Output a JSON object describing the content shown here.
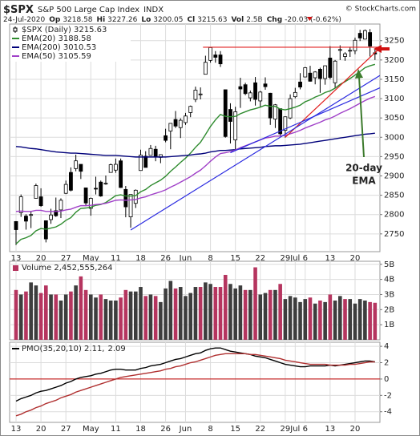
{
  "header": {
    "symbol": "$SPX",
    "name": "S&P 500 Large Cap Index",
    "exchange": "INDX",
    "copyright": "© StockCharts.com",
    "date": "24-Jul-2020",
    "quote": [
      {
        "label": "Op",
        "value": "3218.58"
      },
      {
        "label": "Hi",
        "value": "3227.26"
      },
      {
        "label": "Lo",
        "value": "3200.05"
      },
      {
        "label": "Cl",
        "value": "3215.63"
      },
      {
        "label": "Vol",
        "value": "2.5B"
      },
      {
        "label": "Chg",
        "value": "-20.03 (-0.62%)"
      }
    ]
  },
  "chart_data": [
    {
      "type": "candlestick",
      "categories": [
        "13",
        null,
        null,
        null,
        null,
        "20",
        null,
        null,
        null,
        null,
        "27",
        null,
        null,
        null,
        null,
        "May",
        null,
        null,
        null,
        null,
        "11",
        null,
        null,
        null,
        null,
        "18",
        null,
        null,
        null,
        null,
        "26",
        null,
        null,
        null,
        "Jun",
        null,
        null,
        null,
        null,
        "8",
        null,
        null,
        null,
        null,
        "15",
        null,
        null,
        null,
        null,
        "22",
        null,
        null,
        null,
        null,
        "29",
        null,
        "Jul",
        null,
        "6",
        null,
        null,
        null,
        null,
        "13",
        null,
        null,
        null,
        null,
        "20",
        null,
        null,
        null,
        null
      ],
      "ylim": [
        2704,
        3293
      ],
      "yticks": [
        2750,
        2800,
        2850,
        2900,
        2950,
        3000,
        3050,
        3100,
        3150,
        3200,
        3250
      ],
      "grid": true,
      "series": [
        {
          "name": "$SPX (Daily) 3215.63",
          "type": "candlestick",
          "color": "#000000",
          "open": [
            2782,
            2805,
            2796,
            2799,
            2842,
            2846,
            2784,
            2787,
            2810,
            2812,
            2855,
            2909,
            2919,
            2930,
            2869,
            2816,
            2868,
            2884,
            2879,
            2909,
            2915,
            2939,
            2865,
            2794,
            2829,
            2914,
            2951,
            2953,
            2969,
            2948,
            3004,
            3016,
            3046,
            3025,
            3038,
            3064,
            3098,
            3111,
            3163,
            3199,
            3213,
            3213,
            3123,
            3072,
            2993,
            3131,
            3136,
            3102,
            3141,
            3094,
            3138,
            3114,
            3047,
            3074,
            3018,
            3050,
            3105,
            3143,
            3156,
            3166,
            3154,
            3176,
            3152,
            3205,
            3141,
            3226,
            3209,
            3224,
            3224,
            3269,
            3254,
            3271,
            3218.58
          ],
          "high": [
            2783,
            2852,
            2801,
            2807,
            2880,
            2868,
            2785,
            2815,
            2844,
            2842,
            2888,
            2922,
            2955,
            2930,
            2869,
            2844,
            2898,
            2888,
            2901,
            2932,
            2945,
            2945,
            2874,
            2852,
            2865,
            2968,
            2964,
            2980,
            2978,
            2956,
            3022,
            3036,
            3068,
            3049,
            3063,
            3082,
            3131,
            3129,
            3211,
            3233,
            3223,
            3223,
            3123,
            3088,
            3079,
            3154,
            3141,
            3121,
            3156,
            3120,
            3155,
            3115,
            3086,
            3074,
            3054,
            3111,
            3128,
            3166,
            3182,
            3185,
            3171,
            3180,
            3186,
            3236,
            3200,
            3238,
            3220,
            3234,
            3258,
            3278,
            3279,
            3280,
            3227.26
          ],
          "low": [
            2721,
            2794,
            2761,
            2765,
            2843,
            2820,
            2728,
            2776,
            2794,
            2791,
            2853,
            2860,
            2912,
            2892,
            2822,
            2797,
            2852,
            2846,
            2877,
            2909,
            2908,
            2869,
            2793,
            2766,
            2817,
            2914,
            2922,
            2953,
            2938,
            2933,
            2987,
            2969,
            3024,
            2998,
            3032,
            3052,
            3091,
            3098,
            3163,
            3193,
            3193,
            3182,
            2999,
            2984,
            2966,
            3076,
            3109,
            3093,
            3082,
            3079,
            3123,
            3032,
            3024,
            3004,
            2999,
            3047,
            3101,
            3124,
            3155,
            3144,
            3137,
            3115,
            3136,
            3150,
            3128,
            3200,
            3198,
            3208,
            3215,
            3249,
            3253,
            3209,
            3200.05
          ],
          "close": [
            2761,
            2846,
            2783,
            2800,
            2875,
            2823,
            2737,
            2799,
            2797,
            2837,
            2878,
            2863,
            2939,
            2912,
            2830,
            2842,
            2868,
            2848,
            2881,
            2929,
            2930,
            2870,
            2820,
            2852,
            2863,
            2954,
            2922,
            2971,
            2949,
            2955,
            2992,
            3036,
            3029,
            3044,
            3055,
            3080,
            3122,
            3112,
            3194,
            3232,
            3207,
            3190,
            3002,
            3041,
            3066,
            3125,
            3113,
            3115,
            3098,
            3117,
            3131,
            3050,
            3084,
            3009,
            3053,
            3100,
            3116,
            3130,
            3180,
            3145,
            3169,
            3152,
            3185,
            3155,
            3197,
            3227,
            3216,
            3225,
            3251,
            3257,
            3276,
            3236,
            3215.63
          ]
        },
        {
          "name": "EMA(20) 3188.58",
          "type": "line",
          "color": "#2e8b2e",
          "values": [
            2724,
            2736,
            2740,
            2746,
            2758,
            2764,
            2762,
            2765,
            2768,
            2775,
            2785,
            2792,
            2806,
            2816,
            2817,
            2819,
            2824,
            2826,
            2831,
            2840,
            2849,
            2851,
            2848,
            2848,
            2849,
            2859,
            2865,
            2875,
            2882,
            2889,
            2899,
            2912,
            2923,
            2935,
            2946,
            2959,
            2974,
            2987,
            3007,
            3028,
            3045,
            3059,
            3054,
            3053,
            3054,
            3061,
            3066,
            3071,
            3074,
            3078,
            3083,
            3080,
            3080,
            3073,
            3071,
            3074,
            3078,
            3083,
            3092,
            3097,
            3104,
            3109,
            3116,
            3120,
            3127,
            3137,
            3144,
            3152,
            3161,
            3170,
            3180,
            3185,
            3188.58
          ]
        },
        {
          "name": "EMA(200) 3010.53",
          "type": "line",
          "color": "#00007a",
          "values": [
            2976,
            2975,
            2973,
            2971,
            2970,
            2968,
            2966,
            2964,
            2962,
            2961,
            2960,
            2959,
            2959,
            2958,
            2957,
            2956,
            2955,
            2954,
            2953,
            2953,
            2953,
            2952,
            2951,
            2950,
            2949,
            2949,
            2949,
            2949,
            2949,
            2949,
            2949,
            2950,
            2951,
            2952,
            2953,
            2954,
            2956,
            2957,
            2959,
            2962,
            2964,
            2966,
            2966,
            2967,
            2968,
            2970,
            2971,
            2972,
            2973,
            2974,
            2976,
            2977,
            2978,
            2978,
            2979,
            2980,
            2981,
            2982,
            2984,
            2986,
            2988,
            2990,
            2992,
            2994,
            2996,
            2998,
            3000,
            3002,
            3004,
            3006,
            3008,
            3009,
            3010.53
          ]
        },
        {
          "name": "EMA(50) 3105.59",
          "type": "line",
          "color": "#a040c8",
          "values": [
            2808,
            2809,
            2808,
            2808,
            2811,
            2811,
            2808,
            2808,
            2808,
            2809,
            2812,
            2814,
            2819,
            2823,
            2823,
            2824,
            2826,
            2827,
            2829,
            2833,
            2837,
            2838,
            2837,
            2838,
            2839,
            2843,
            2846,
            2851,
            2855,
            2859,
            2864,
            2871,
            2877,
            2884,
            2891,
            2898,
            2907,
            2915,
            2926,
            2938,
            2949,
            2958,
            2960,
            2963,
            2967,
            2973,
            2978,
            2983,
            2988,
            2993,
            2998,
            3000,
            3003,
            3003,
            3005,
            3009,
            3013,
            3018,
            3024,
            3029,
            3034,
            3039,
            3045,
            3049,
            3055,
            3062,
            3068,
            3074,
            3081,
            3088,
            3095,
            3101,
            3105.59
          ]
        }
      ],
      "trendlines": [
        {
          "color": "#e01b1b",
          "x": [
            37.5,
            73
          ],
          "y": [
            3233,
            3233
          ]
        },
        {
          "color": "#e01b1b",
          "x": [
            54,
            72.5
          ],
          "y": [
            3000,
            3225
          ]
        },
        {
          "color": "#2a2ae0",
          "x": [
            23,
            73
          ],
          "y": [
            2760,
            3160
          ]
        },
        {
          "color": "#2a2ae0",
          "x": [
            43,
            73
          ],
          "y": [
            2960,
            3128
          ]
        }
      ],
      "annotation": {
        "text": [
          "20-day",
          "EMA"
        ],
        "color": "#3c7a2c"
      }
    },
    {
      "type": "bar",
      "ylim": [
        0,
        5.2
      ],
      "yticks": [
        {
          "value": 1,
          "label": "1B"
        },
        {
          "value": 2,
          "label": "2B"
        },
        {
          "value": 3,
          "label": "3B"
        },
        {
          "value": 4,
          "label": "4B"
        },
        {
          "value": 5,
          "label": "5B"
        }
      ],
      "grid": true,
      "series": [
        {
          "name": "Volume 2,452,555,264",
          "type": "bar",
          "up_color": "#3d3d3d",
          "down_color": "#b5355f",
          "values": [
            3.3,
            3.0,
            3.2,
            3.8,
            3.6,
            3.1,
            3.6,
            3.0,
            3.0,
            2.6,
            3.0,
            3.2,
            3.6,
            4.2,
            3.3,
            3.0,
            2.8,
            3.0,
            2.7,
            2.6,
            2.6,
            2.8,
            3.3,
            3.2,
            3.2,
            3.5,
            2.9,
            3.0,
            2.9,
            2.5,
            3.4,
            3.9,
            3.4,
            3.5,
            2.9,
            3.1,
            3.5,
            3.5,
            3.8,
            3.7,
            3.5,
            3.5,
            4.3,
            3.7,
            3.4,
            3.6,
            3.3,
            3.3,
            4.8,
            3.0,
            3.1,
            3.3,
            3.3,
            3.7,
            2.7,
            2.9,
            2.8,
            2.5,
            2.7,
            2.8,
            2.4,
            2.6,
            2.5,
            3.0,
            2.6,
            2.9,
            2.7,
            2.7,
            2.4,
            2.7,
            2.6,
            2.5,
            2.452555264
          ]
        }
      ]
    },
    {
      "type": "line",
      "categories": [
        "13",
        null,
        null,
        null,
        null,
        "20",
        null,
        null,
        null,
        null,
        "27",
        null,
        null,
        null,
        null,
        "May",
        null,
        null,
        null,
        null,
        "11",
        null,
        null,
        null,
        null,
        "18",
        null,
        null,
        null,
        null,
        "26",
        null,
        null,
        null,
        "Jun",
        null,
        null,
        null,
        null,
        "8",
        null,
        null,
        null,
        null,
        "15",
        null,
        null,
        null,
        null,
        "22",
        null,
        null,
        null,
        null,
        "29",
        null,
        "Jul",
        null,
        "6",
        null,
        null,
        null,
        null,
        "13",
        null,
        null,
        null,
        null,
        "20",
        null,
        null,
        null,
        null
      ],
      "ylim": [
        -5.3,
        4.5
      ],
      "yticks": [
        4,
        2,
        0,
        -2,
        -4
      ],
      "grid": true,
      "reference_line": {
        "value": 0,
        "color": "#c00000"
      },
      "series": [
        {
          "name": "PMO(35,20,10) 2.11,",
          "type": "line",
          "color": "#000000",
          "values": [
            -2.7,
            -2.4,
            -2.2,
            -2.0,
            -1.7,
            -1.5,
            -1.4,
            -1.2,
            -1.0,
            -0.8,
            -0.5,
            -0.3,
            0.0,
            0.2,
            0.3,
            0.4,
            0.6,
            0.7,
            0.9,
            1.1,
            1.2,
            1.2,
            1.1,
            1.1,
            1.1,
            1.3,
            1.4,
            1.6,
            1.7,
            1.8,
            2.0,
            2.2,
            2.4,
            2.5,
            2.7,
            2.9,
            3.1,
            3.2,
            3.5,
            3.7,
            3.8,
            3.8,
            3.6,
            3.4,
            3.3,
            3.2,
            3.1,
            3.0,
            2.8,
            2.7,
            2.6,
            2.4,
            2.2,
            2.0,
            1.8,
            1.7,
            1.6,
            1.5,
            1.5,
            1.6,
            1.6,
            1.6,
            1.6,
            1.7,
            1.6,
            1.7,
            1.8,
            1.9,
            2.0,
            2.1,
            2.2,
            2.2,
            2.11
          ]
        },
        {
          "name": "2.09",
          "type": "line",
          "color": "#b03030",
          "values": [
            -4.5,
            -4.3,
            -4.0,
            -3.8,
            -3.5,
            -3.3,
            -3.0,
            -2.8,
            -2.6,
            -2.3,
            -2.1,
            -1.9,
            -1.6,
            -1.4,
            -1.2,
            -1.0,
            -0.8,
            -0.6,
            -0.4,
            -0.2,
            0.0,
            0.2,
            0.3,
            0.4,
            0.5,
            0.6,
            0.7,
            0.8,
            0.9,
            1.0,
            1.2,
            1.3,
            1.5,
            1.6,
            1.8,
            2.0,
            2.1,
            2.3,
            2.5,
            2.7,
            2.9,
            3.0,
            3.1,
            3.1,
            3.1,
            3.1,
            3.1,
            3.0,
            3.0,
            2.9,
            2.8,
            2.7,
            2.6,
            2.5,
            2.3,
            2.2,
            2.1,
            2.0,
            1.9,
            1.8,
            1.8,
            1.8,
            1.8,
            1.7,
            1.7,
            1.7,
            1.7,
            1.8,
            1.8,
            1.9,
            2.0,
            2.1,
            2.09
          ]
        }
      ]
    }
  ]
}
